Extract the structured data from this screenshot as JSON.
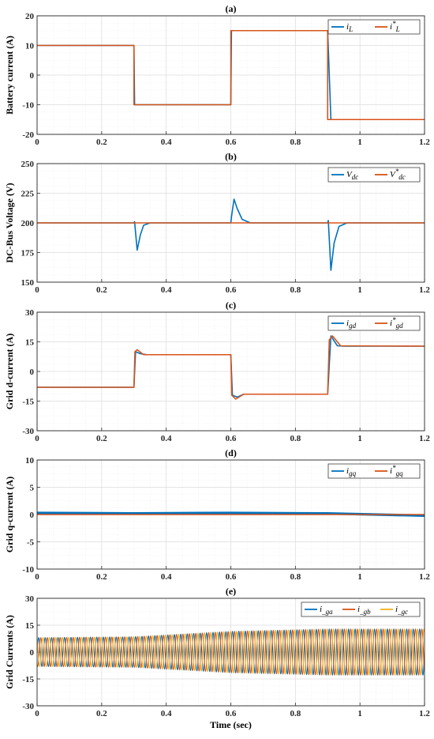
{
  "colors": {
    "blue": "#0072BD",
    "orange": "#D95319",
    "yellow": "#EDB120",
    "grid": "#dcdcdc"
  },
  "chart_data": [
    {
      "type": "line",
      "title": "(a)",
      "ylabel": "Battery current (A)",
      "xlabel": "",
      "xlim": [
        0,
        1.2
      ],
      "ylim": [
        -20,
        20
      ],
      "xticks": [
        "0",
        "0.2",
        "0.4",
        "0.6",
        "0.8",
        "1",
        "1.2"
      ],
      "yticks": [
        "20",
        "10",
        "0",
        "-10",
        "-20"
      ],
      "grid": true,
      "legend": "top-right",
      "legend_entries": [
        {
          "base": "i",
          "sup": "",
          "sub": "L"
        },
        {
          "base": "i",
          "sup": "*",
          "sub": "L"
        }
      ],
      "series": [
        {
          "color": "blue",
          "x": [
            0,
            0.3,
            0.302,
            0.6,
            0.602,
            0.9,
            0.91,
            1.2
          ],
          "y": [
            10,
            10,
            -10,
            -10,
            15,
            15,
            -15,
            -15
          ]
        },
        {
          "color": "orange",
          "x": [
            0,
            0.3,
            0.3,
            0.6,
            0.6,
            0.9,
            0.9,
            1.2
          ],
          "y": [
            10,
            10,
            -10,
            -10,
            15,
            15,
            -15,
            -15
          ]
        }
      ]
    },
    {
      "type": "line",
      "title": "(b)",
      "ylabel": "DC-Bus Voltage (V)",
      "xlabel": "",
      "xlim": [
        0,
        1.2
      ],
      "ylim": [
        150,
        250
      ],
      "xticks": [
        "0",
        "0.2",
        "0.4",
        "0.6",
        "0.8",
        "1",
        "1.2"
      ],
      "yticks": [
        "250",
        "225",
        "200",
        "175",
        "150"
      ],
      "grid": true,
      "legend": "top-right",
      "legend_entries": [
        {
          "base": "V",
          "sup": "",
          "sub": "dc"
        },
        {
          "base": "V",
          "sup": "*",
          "sub": "dc"
        }
      ],
      "series": [
        {
          "color": "blue",
          "x": [
            0,
            0.3,
            0.302,
            0.31,
            0.32,
            0.33,
            0.35,
            0.6,
            0.602,
            0.61,
            0.62,
            0.635,
            0.66,
            0.9,
            0.902,
            0.91,
            0.92,
            0.935,
            0.96,
            1.2
          ],
          "y": [
            200,
            200,
            201,
            177,
            190,
            198,
            200,
            200,
            205,
            220,
            212,
            203,
            200,
            200,
            202,
            160,
            183,
            197,
            200,
            200
          ]
        },
        {
          "color": "orange",
          "x": [
            0,
            1.2
          ],
          "y": [
            200,
            200
          ]
        }
      ]
    },
    {
      "type": "line",
      "title": "(c)",
      "ylabel": "Grid d-current (A)",
      "xlabel": "",
      "xlim": [
        0,
        1.2
      ],
      "ylim": [
        -30,
        30
      ],
      "xticks": [
        "0",
        "0.2",
        "0.4",
        "0.6",
        "0.8",
        "1",
        "1.2"
      ],
      "yticks": [
        "30",
        "15",
        "0",
        "-15",
        "-30"
      ],
      "grid": true,
      "legend": "top-right",
      "legend_entries": [
        {
          "base": "i",
          "sup": "",
          "sub": "gd"
        },
        {
          "base": "i",
          "sup": "*",
          "sub": "gd"
        }
      ],
      "series": [
        {
          "color": "blue",
          "x": [
            0,
            0.3,
            0.305,
            0.32,
            0.34,
            0.6,
            0.605,
            0.62,
            0.64,
            0.9,
            0.91,
            0.93,
            0.95,
            1.2
          ],
          "y": [
            -8,
            -8,
            10,
            9,
            8.5,
            8.5,
            -12,
            -13,
            -11.5,
            -11.5,
            18,
            13,
            12.8,
            12.8
          ]
        },
        {
          "color": "orange",
          "x": [
            0,
            0.3,
            0.303,
            0.31,
            0.33,
            0.6,
            0.603,
            0.615,
            0.64,
            0.9,
            0.905,
            0.915,
            0.94,
            1.2
          ],
          "y": [
            -8,
            -8,
            10,
            11,
            8.5,
            8.5,
            -12,
            -14,
            -11.5,
            -11.5,
            16,
            18,
            13,
            12.8
          ]
        }
      ]
    },
    {
      "type": "line",
      "title": "(d)",
      "ylabel": "Grid q-current (A)",
      "xlabel": "",
      "xlim": [
        0,
        1.2
      ],
      "ylim": [
        -10,
        10
      ],
      "xticks": [
        "0",
        "0.2",
        "0.4",
        "0.6",
        "0.8",
        "1",
        "1.2"
      ],
      "yticks": [
        "10",
        "5",
        "0",
        "-5",
        "-10"
      ],
      "grid": true,
      "legend": "top-right",
      "legend_entries": [
        {
          "base": "i",
          "sup": "",
          "sub": "gq"
        },
        {
          "base": "i",
          "sup": "*",
          "sub": "gq"
        }
      ],
      "series": [
        {
          "color": "blue",
          "x": [
            0,
            0.3,
            0.6,
            0.9,
            1.2
          ],
          "y": [
            0.3,
            0.2,
            0.3,
            0.2,
            -0.2
          ]
        },
        {
          "color": "orange",
          "x": [
            0,
            1.2
          ],
          "y": [
            0,
            0
          ]
        }
      ]
    },
    {
      "type": "line",
      "title": "(e)",
      "ylabel": "Grid Currents (A)",
      "xlabel": "Time (sec)",
      "xlim": [
        0,
        1.2
      ],
      "ylim": [
        -30,
        30
      ],
      "xticks": [
        "0",
        "0.2",
        "0.4",
        "0.6",
        "0.8",
        "1",
        "1.2"
      ],
      "yticks": [
        "30",
        "15",
        "0",
        "-15",
        "-30"
      ],
      "grid": true,
      "legend": "top-right",
      "legend_entries": [
        {
          "base": "i",
          "sup": "",
          "sub": "_ga"
        },
        {
          "base": "i",
          "sup": "",
          "sub": "_gb"
        },
        {
          "base": "i",
          "sup": "",
          "sub": "_gc"
        }
      ],
      "series": [
        {
          "color": "blue",
          "phase_deg": 0
        },
        {
          "color": "orange",
          "phase_deg": -120
        },
        {
          "color": "yellow",
          "phase_deg": 120
        }
      ],
      "amplitude_x": [
        0,
        0.3,
        0.6,
        0.9,
        1.2
      ],
      "amplitude_y": [
        8,
        8.5,
        11.5,
        12.8,
        12.8
      ],
      "frequency_hz": 50
    }
  ]
}
